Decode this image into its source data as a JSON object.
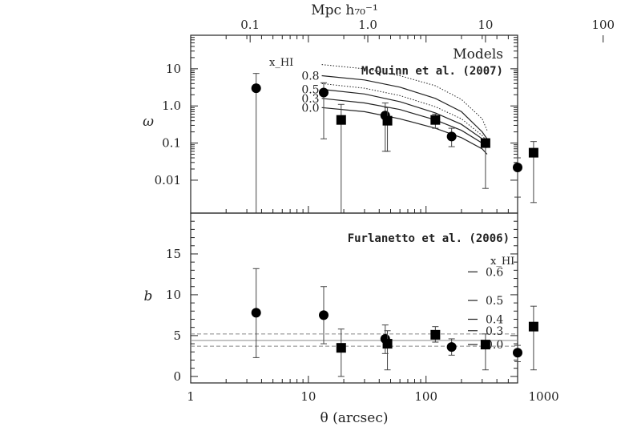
{
  "chart_data": [
    {
      "type": "scatter",
      "panel": "top",
      "xscale": "log",
      "yscale": "log",
      "xlabel": "θ (arcsec)",
      "ylabel": "ω",
      "top_axis_label": "Mpc h₇₀⁻¹",
      "top_ticks": [
        {
          "value": 0.1,
          "label": "0.1"
        },
        {
          "value": 1.0,
          "label": "1.0"
        },
        {
          "value": 10,
          "label": "10"
        },
        {
          "value": 100,
          "label": "100"
        }
      ],
      "yticks": [
        {
          "value": 10,
          "label": "10"
        },
        {
          "value": 1,
          "label": "1.0"
        },
        {
          "value": 0.1,
          "label": "0.1"
        },
        {
          "value": 0.01,
          "label": "0.01"
        }
      ],
      "ylim": [
        0.0013,
        80
      ],
      "legend_title": "Models",
      "legend_ref": "McQuinn et al. (2007)",
      "model_param_label": "x_HI",
      "model_labels": [
        "0.8",
        "0.5",
        "0.3",
        "0.0"
      ],
      "series": [
        {
          "marker": "circle",
          "points": [
            {
              "x": 3.6,
              "y": 3.0,
              "lo": 0.0013,
              "hi": 7.5
            },
            {
              "x": 13.5,
              "y": 2.3,
              "lo": 0.13,
              "hi": 4.2
            },
            {
              "x": 45,
              "y": 0.55,
              "lo": 0.06,
              "hi": 1.2
            },
            {
              "x": 165,
              "y": 0.15,
              "lo": 0.08,
              "hi": 0.25
            },
            {
              "x": 600,
              "y": 0.022,
              "lo": 0.0035,
              "hi": 0.04
            }
          ]
        },
        {
          "marker": "square",
          "points": [
            {
              "x": 19,
              "y": 0.42,
              "lo": 0.0013,
              "hi": 1.1
            },
            {
              "x": 47,
              "y": 0.4,
              "lo": 0.06,
              "hi": 0.9
            },
            {
              "x": 120,
              "y": 0.42,
              "lo": 0.25,
              "hi": 0.6
            },
            {
              "x": 320,
              "y": 0.1,
              "lo": 0.006,
              "hi": 0.13
            },
            {
              "x": 820,
              "y": 0.055,
              "lo": 0.0025,
              "hi": 0.11
            }
          ]
        }
      ],
      "model_curves": [
        {
          "xHI": "0.95",
          "style": "dotted",
          "x": [
            13,
            30,
            60,
            120,
            200,
            300,
            330
          ],
          "y": [
            13,
            10,
            6.5,
            3.5,
            1.5,
            0.45,
            0.22
          ]
        },
        {
          "xHI": "0.8",
          "style": "solid",
          "x": [
            13,
            30,
            60,
            120,
            200,
            300,
            330
          ],
          "y": [
            6.5,
            5.0,
            3.2,
            1.6,
            0.7,
            0.2,
            0.13
          ]
        },
        {
          "xHI": "0.65",
          "style": "dotted",
          "x": [
            13,
            30,
            60,
            120,
            200,
            300,
            330
          ],
          "y": [
            4.0,
            3.0,
            1.9,
            0.95,
            0.45,
            0.16,
            0.11
          ]
        },
        {
          "xHI": "0.5",
          "style": "solid",
          "x": [
            13,
            30,
            60,
            120,
            200,
            300,
            330
          ],
          "y": [
            2.8,
            2.1,
            1.3,
            0.65,
            0.32,
            0.13,
            0.09
          ]
        },
        {
          "xHI": "0.3",
          "style": "solid",
          "x": [
            13,
            30,
            60,
            120,
            200,
            300,
            330
          ],
          "y": [
            1.6,
            1.2,
            0.8,
            0.42,
            0.22,
            0.1,
            0.075
          ]
        },
        {
          "xHI": "0.0",
          "style": "solid",
          "x": [
            13,
            30,
            60,
            120,
            200,
            300,
            330
          ],
          "y": [
            0.9,
            0.7,
            0.45,
            0.25,
            0.14,
            0.07,
            0.05
          ]
        }
      ]
    },
    {
      "type": "scatter",
      "panel": "bottom",
      "xscale": "log",
      "xlabel": "θ (arcsec)",
      "ylabel": "b",
      "xticks": [
        {
          "value": 1,
          "label": "1"
        },
        {
          "value": 10,
          "label": "10"
        },
        {
          "value": 100,
          "label": "100"
        },
        {
          "value": 1000,
          "label": "1000"
        }
      ],
      "yticks": [
        {
          "value": 0,
          "label": "0"
        },
        {
          "value": 5,
          "label": "5"
        },
        {
          "value": 10,
          "label": "10"
        },
        {
          "value": 15,
          "label": "15"
        }
      ],
      "ylim": [
        -0.8,
        20
      ],
      "legend_ref": "Furlanetto et al. (2006)",
      "model_param_label": "x_HI",
      "bias_ticks": [
        {
          "value": 12.8,
          "label": "0.6"
        },
        {
          "value": 9.3,
          "label": "0.5"
        },
        {
          "value": 7.0,
          "label": "0.4"
        },
        {
          "value": 5.6,
          "label": "0.3"
        },
        {
          "value": 3.9,
          "label": "0.0"
        }
      ],
      "hlines": [
        {
          "y": 5.2,
          "style": "dashed"
        },
        {
          "y": 4.4,
          "style": "solid"
        },
        {
          "y": 3.7,
          "style": "dashed"
        }
      ],
      "series": [
        {
          "marker": "circle",
          "points": [
            {
              "x": 3.6,
              "y": 7.8,
              "lo": 2.3,
              "hi": 13.2
            },
            {
              "x": 13.5,
              "y": 7.5,
              "lo": 4.0,
              "hi": 11.0
            },
            {
              "x": 45,
              "y": 4.6,
              "lo": 2.8,
              "hi": 6.3
            },
            {
              "x": 165,
              "y": 3.6,
              "lo": 2.6,
              "hi": 4.6
            },
            {
              "x": 600,
              "y": 2.9,
              "lo": 1.8,
              "hi": 3.8
            }
          ]
        },
        {
          "marker": "square",
          "points": [
            {
              "x": 19,
              "y": 3.5,
              "lo": 0.0,
              "hi": 5.8
            },
            {
              "x": 47,
              "y": 4.0,
              "lo": 0.8,
              "hi": 5.6
            },
            {
              "x": 120,
              "y": 5.1,
              "lo": 4.2,
              "hi": 6.1
            },
            {
              "x": 320,
              "y": 3.9,
              "lo": 0.8,
              "hi": 5.2
            },
            {
              "x": 820,
              "y": 6.1,
              "lo": 0.8,
              "hi": 8.6
            }
          ]
        }
      ]
    }
  ]
}
